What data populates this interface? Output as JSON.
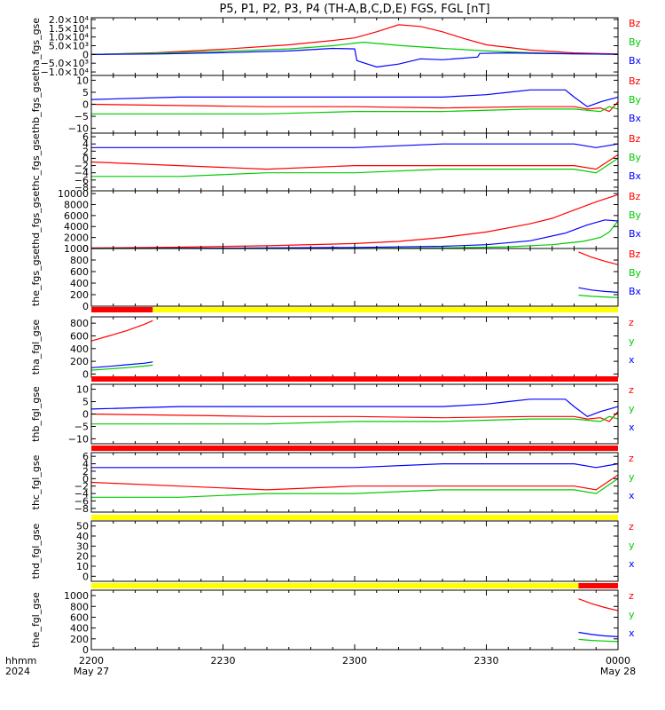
{
  "title": "P5, P1, P2, P3, P4 (TH-A,B,C,D,E) FGS, FGL [nT]",
  "colors": {
    "x": "#0000ff",
    "y": "#00cc00",
    "z": "#ff0000",
    "axis": "#000000",
    "bar_red": "#ff0000",
    "bar_yellow": "#ffff00"
  },
  "time_axis": {
    "row_label_1": "hhmm",
    "row_label_2": "2024",
    "ticks": [
      {
        "t": 0,
        "label": "2200",
        "sub": "May 27"
      },
      {
        "t": 30,
        "label": "2230",
        "sub": ""
      },
      {
        "t": 60,
        "label": "2300",
        "sub": ""
      },
      {
        "t": 90,
        "label": "2330",
        "sub": ""
      },
      {
        "t": 120,
        "label": "0000",
        "sub": "May 28"
      }
    ],
    "range_minutes": [
      0,
      120
    ]
  },
  "chart_data": [
    {
      "type": "line",
      "ylabel": "tha_fgs_gse",
      "ylim": [
        -12000,
        21000
      ],
      "yticks": [
        {
          "v": 20000,
          "label": "2.0×10⁴"
        },
        {
          "v": 15000,
          "label": "1.5×10⁴"
        },
        {
          "v": 10000,
          "label": "1.0×10⁴"
        },
        {
          "v": 5000,
          "label": "5.0×10³"
        },
        {
          "v": 0,
          "label": "0"
        },
        {
          "v": -5000,
          "label": "−5.0×10³"
        },
        {
          "v": -10000,
          "label": "−1.0×10⁴"
        }
      ],
      "legend": [
        "Bz",
        "By",
        "Bx"
      ],
      "series": [
        {
          "name": "Bz",
          "color": "z",
          "x": [
            0,
            15,
            30,
            45,
            55,
            60,
            65,
            70,
            75,
            80,
            85,
            90,
            100,
            110,
            120
          ],
          "y": [
            0,
            1000,
            3000,
            5500,
            8000,
            9500,
            13000,
            17000,
            16000,
            13000,
            9000,
            5500,
            2500,
            900,
            300
          ]
        },
        {
          "name": "By",
          "color": "y",
          "x": [
            0,
            15,
            30,
            45,
            55,
            60,
            62,
            70,
            80,
            90,
            100,
            110,
            120
          ],
          "y": [
            0,
            800,
            1800,
            3200,
            5000,
            6500,
            7000,
            5200,
            3500,
            2000,
            1000,
            400,
            100
          ]
        },
        {
          "name": "Bx",
          "color": "x",
          "x": [
            0,
            15,
            30,
            45,
            55,
            60,
            60.5,
            65,
            70,
            75,
            80,
            88,
            88.5,
            95,
            105,
            120
          ],
          "y": [
            0,
            300,
            1000,
            2000,
            3500,
            3200,
            -3500,
            -7200,
            -5500,
            -2500,
            -3000,
            -1500,
            600,
            900,
            500,
            100
          ]
        }
      ]
    },
    {
      "type": "line",
      "ylabel": "thb_fgs_gse",
      "ylim": [
        -12,
        12
      ],
      "yticks": [
        {
          "v": 10,
          "label": "10"
        },
        {
          "v": 5,
          "label": "5"
        },
        {
          "v": 0,
          "label": "0"
        },
        {
          "v": -5,
          "label": "−5"
        },
        {
          "v": -10,
          "label": "−10"
        }
      ],
      "legend": [
        "Bz",
        "By",
        "Bx"
      ],
      "series": [
        {
          "name": "Bz",
          "color": "z",
          "x": [
            0,
            20,
            40,
            60,
            80,
            100,
            110,
            113,
            116,
            118,
            120
          ],
          "y": [
            0,
            -0.5,
            -1,
            -1,
            -1.5,
            -1,
            -1,
            -2,
            -1.5,
            -3,
            1
          ]
        },
        {
          "name": "By",
          "color": "y",
          "x": [
            0,
            20,
            40,
            60,
            80,
            100,
            110,
            113,
            116,
            118,
            120
          ],
          "y": [
            -4,
            -4,
            -4,
            -3,
            -3,
            -2,
            -2,
            -2.5,
            -3,
            -1,
            -2
          ]
        },
        {
          "name": "Bx",
          "color": "x",
          "x": [
            0,
            20,
            40,
            60,
            80,
            90,
            95,
            100,
            105,
            108,
            110,
            113,
            116,
            118,
            120
          ],
          "y": [
            2,
            3,
            3,
            3,
            3,
            4,
            5,
            6,
            6,
            6,
            3,
            -1,
            1,
            2,
            3
          ]
        }
      ]
    },
    {
      "type": "line",
      "ylabel": "thc_fgs_gse",
      "ylim": [
        -9,
        7
      ],
      "yticks": [
        {
          "v": 6,
          "label": "6"
        },
        {
          "v": 4,
          "label": "4"
        },
        {
          "v": 2,
          "label": "2"
        },
        {
          "v": 0,
          "label": "0"
        },
        {
          "v": -2,
          "label": "−2"
        },
        {
          "v": -4,
          "label": "−4"
        },
        {
          "v": -6,
          "label": "−6"
        },
        {
          "v": -8,
          "label": "−8"
        }
      ],
      "legend": [
        "Bz",
        "By",
        "Bx"
      ],
      "series": [
        {
          "name": "Bz",
          "color": "z",
          "x": [
            0,
            20,
            40,
            60,
            80,
            100,
            110,
            115,
            120
          ],
          "y": [
            -1,
            -2,
            -3,
            -2,
            -2,
            -2,
            -2,
            -3,
            1
          ]
        },
        {
          "name": "By",
          "color": "y",
          "x": [
            0,
            20,
            40,
            60,
            80,
            100,
            110,
            115,
            120
          ],
          "y": [
            -5,
            -5,
            -4,
            -4,
            -3,
            -3,
            -3,
            -4,
            0
          ]
        },
        {
          "name": "Bx",
          "color": "x",
          "x": [
            0,
            20,
            40,
            60,
            80,
            100,
            110,
            115,
            120
          ],
          "y": [
            3,
            3,
            3,
            3,
            4,
            4,
            4,
            3,
            4
          ]
        }
      ]
    },
    {
      "type": "line",
      "ylabel": "thd_fgs_gse",
      "ylim": [
        0,
        10500
      ],
      "yticks": [
        {
          "v": 10000,
          "label": "10000"
        },
        {
          "v": 8000,
          "label": "8000"
        },
        {
          "v": 6000,
          "label": "6000"
        },
        {
          "v": 4000,
          "label": "4000"
        },
        {
          "v": 2000,
          "label": "2000"
        },
        {
          "v": 0,
          "label": "0"
        }
      ],
      "legend": [
        "Bz",
        "By",
        "Bx"
      ],
      "series": [
        {
          "name": "Bz",
          "color": "z",
          "x": [
            0,
            20,
            40,
            60,
            70,
            80,
            90,
            100,
            105,
            110,
            115,
            120
          ],
          "y": [
            100,
            250,
            500,
            900,
            1300,
            2000,
            3000,
            4500,
            5500,
            7000,
            8500,
            9800
          ]
        },
        {
          "name": "By",
          "color": "y",
          "x": [
            0,
            60,
            80,
            95,
            105,
            112,
            116,
            118,
            120
          ],
          "y": [
            0,
            0,
            100,
            300,
            700,
            1300,
            2000,
            3000,
            5000
          ]
        },
        {
          "name": "Bx",
          "color": "x",
          "x": [
            0,
            40,
            60,
            80,
            90,
            100,
            108,
            113,
            117,
            120
          ],
          "y": [
            0,
            100,
            200,
            400,
            700,
            1400,
            2800,
            4300,
            5200,
            5000
          ]
        }
      ]
    },
    {
      "type": "line",
      "ylabel": "the_fgs_gse",
      "ylim": [
        0,
        1000
      ],
      "yticks": [
        {
          "v": 1000,
          "label": "1000"
        },
        {
          "v": 800,
          "label": "800"
        },
        {
          "v": 600,
          "label": "600"
        },
        {
          "v": 400,
          "label": "400"
        },
        {
          "v": 200,
          "label": "200"
        },
        {
          "v": 0,
          "label": "0"
        }
      ],
      "legend": [
        "Bz",
        "By",
        "Bx"
      ],
      "series": [
        {
          "name": "Bz",
          "color": "z",
          "x": [
            111,
            114,
            117,
            120
          ],
          "y": [
            940,
            850,
            780,
            720
          ]
        },
        {
          "name": "By",
          "color": "y",
          "x": [
            111,
            114,
            117,
            120
          ],
          "y": [
            190,
            170,
            160,
            150
          ]
        },
        {
          "name": "Bx",
          "color": "x",
          "x": [
            111,
            114,
            117,
            120
          ],
          "y": [
            320,
            280,
            255,
            240
          ]
        }
      ]
    },
    {
      "type": "line",
      "ylabel": "tha_fgl_gse",
      "ylim": [
        -50,
        900
      ],
      "yticks": [
        {
          "v": 800,
          "label": "800"
        },
        {
          "v": 600,
          "label": "600"
        },
        {
          "v": 400,
          "label": "400"
        },
        {
          "v": 200,
          "label": "200"
        },
        {
          "v": 0,
          "label": "0"
        }
      ],
      "legend": [
        "z",
        "y",
        "x"
      ],
      "status_bar": [
        {
          "from": 0,
          "to": 14,
          "color": "bar_red"
        },
        {
          "from": 14,
          "to": 120,
          "color": "bar_yellow"
        }
      ],
      "series": [
        {
          "name": "z",
          "color": "z",
          "x": [
            0,
            4,
            8,
            12,
            14
          ],
          "y": [
            520,
            600,
            680,
            780,
            840
          ]
        },
        {
          "name": "y",
          "color": "y",
          "x": [
            0,
            4,
            8,
            12,
            14
          ],
          "y": [
            60,
            80,
            100,
            125,
            140
          ]
        },
        {
          "name": "x",
          "color": "x",
          "x": [
            0,
            4,
            8,
            12,
            14
          ],
          "y": [
            100,
            120,
            145,
            170,
            190
          ]
        }
      ]
    },
    {
      "type": "line",
      "ylabel": "thb_fgl_gse",
      "ylim": [
        -12,
        12
      ],
      "yticks": [
        {
          "v": 10,
          "label": "10"
        },
        {
          "v": 5,
          "label": "5"
        },
        {
          "v": 0,
          "label": "0"
        },
        {
          "v": -5,
          "label": "−5"
        },
        {
          "v": -10,
          "label": "−10"
        }
      ],
      "legend": [
        "z",
        "y",
        "x"
      ],
      "status_bar": [
        {
          "from": 0,
          "to": 120,
          "color": "bar_red"
        }
      ],
      "series": [
        {
          "name": "z",
          "color": "z",
          "x": [
            0,
            20,
            40,
            60,
            80,
            100,
            110,
            113,
            116,
            118,
            120
          ],
          "y": [
            0,
            -0.5,
            -1,
            -1,
            -1.5,
            -1,
            -1,
            -2,
            -1.5,
            -3,
            1
          ]
        },
        {
          "name": "y",
          "color": "y",
          "x": [
            0,
            20,
            40,
            60,
            80,
            100,
            110,
            113,
            116,
            118,
            120
          ],
          "y": [
            -4,
            -4,
            -4,
            -3,
            -3,
            -2,
            -2,
            -2.5,
            -3,
            -1,
            -2
          ]
        },
        {
          "name": "x",
          "color": "x",
          "x": [
            0,
            20,
            40,
            60,
            80,
            90,
            95,
            100,
            105,
            108,
            110,
            113,
            116,
            118,
            120
          ],
          "y": [
            2,
            3,
            3,
            3,
            3,
            4,
            5,
            6,
            6,
            6,
            3,
            -1,
            1,
            2,
            3
          ]
        }
      ]
    },
    {
      "type": "line",
      "ylabel": "thc_fgl_gse",
      "ylim": [
        -9,
        7
      ],
      "yticks": [
        {
          "v": 6,
          "label": "6"
        },
        {
          "v": 4,
          "label": "4"
        },
        {
          "v": 2,
          "label": "2"
        },
        {
          "v": 0,
          "label": "0"
        },
        {
          "v": -2,
          "label": "−2"
        },
        {
          "v": -4,
          "label": "−4"
        },
        {
          "v": -6,
          "label": "−6"
        },
        {
          "v": -8,
          "label": "−8"
        }
      ],
      "legend": [
        "z",
        "y",
        "x"
      ],
      "status_bar": [
        {
          "from": 0,
          "to": 120,
          "color": "bar_red"
        }
      ],
      "series": [
        {
          "name": "z",
          "color": "z",
          "x": [
            0,
            20,
            40,
            60,
            80,
            100,
            110,
            115,
            120
          ],
          "y": [
            -1,
            -2,
            -3,
            -2,
            -2,
            -2,
            -2,
            -3,
            1
          ]
        },
        {
          "name": "y",
          "color": "y",
          "x": [
            0,
            20,
            40,
            60,
            80,
            100,
            110,
            115,
            120
          ],
          "y": [
            -5,
            -5,
            -4,
            -4,
            -3,
            -3,
            -3,
            -4,
            0
          ]
        },
        {
          "name": "x",
          "color": "x",
          "x": [
            0,
            20,
            40,
            60,
            80,
            100,
            110,
            115,
            120
          ],
          "y": [
            3,
            3,
            3,
            3,
            4,
            4,
            4,
            3,
            4
          ]
        }
      ]
    },
    {
      "type": "line",
      "ylabel": "thd_fgl_gse",
      "ylim": [
        -5,
        55
      ],
      "yticks": [
        {
          "v": 50,
          "label": "50"
        },
        {
          "v": 40,
          "label": "40"
        },
        {
          "v": 30,
          "label": "30"
        },
        {
          "v": 20,
          "label": "20"
        },
        {
          "v": 10,
          "label": "10"
        },
        {
          "v": 0,
          "label": "0"
        }
      ],
      "legend": [
        "z",
        "y",
        "x"
      ],
      "status_bar": [
        {
          "from": 0,
          "to": 120,
          "color": "bar_yellow"
        }
      ],
      "series": []
    },
    {
      "type": "line",
      "ylabel": "the_fgl_gse",
      "ylim": [
        0,
        1100
      ],
      "yticks": [
        {
          "v": 1000,
          "label": "1000"
        },
        {
          "v": 800,
          "label": "800"
        },
        {
          "v": 600,
          "label": "600"
        },
        {
          "v": 400,
          "label": "400"
        },
        {
          "v": 200,
          "label": "200"
        },
        {
          "v": 0,
          "label": "0"
        }
      ],
      "legend": [
        "z",
        "y",
        "x"
      ],
      "status_bar": [
        {
          "from": 0,
          "to": 111,
          "color": "bar_yellow"
        },
        {
          "from": 111,
          "to": 120,
          "color": "bar_red"
        }
      ],
      "series": [
        {
          "name": "z",
          "color": "z",
          "x": [
            111,
            114,
            117,
            120
          ],
          "y": [
            940,
            850,
            780,
            720
          ]
        },
        {
          "name": "y",
          "color": "y",
          "x": [
            111,
            114,
            117,
            120
          ],
          "y": [
            190,
            170,
            160,
            150
          ]
        },
        {
          "name": "x",
          "color": "x",
          "x": [
            111,
            114,
            117,
            120
          ],
          "y": [
            320,
            280,
            255,
            240
          ]
        }
      ]
    }
  ]
}
